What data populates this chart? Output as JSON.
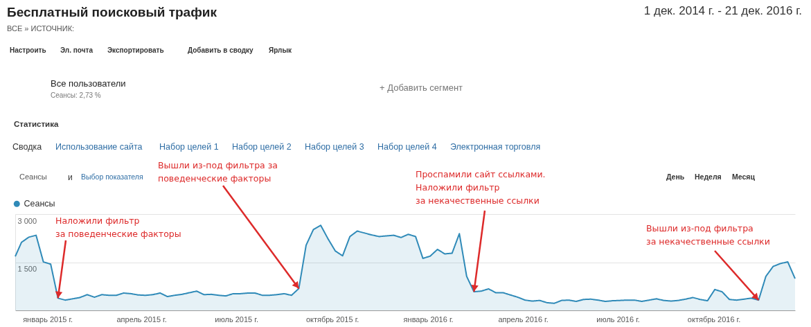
{
  "chart_data": {
    "type": "area",
    "title": "Бесплатный поисковый трафик",
    "subtitle": "1 дек. 2014 г. - 21 дек. 2016 г.",
    "x": [
      "2014-12-01",
      "2014-12-07",
      "2014-12-14",
      "2014-12-21",
      "2014-12-28",
      "2015-01-04",
      "2015-01-11",
      "2015-01-18",
      "2015-01-25",
      "2015-02-01",
      "2015-02-08",
      "2015-02-15",
      "2015-02-22",
      "2015-03-01",
      "2015-03-08",
      "2015-03-15",
      "2015-03-22",
      "2015-03-29",
      "2015-04-05",
      "2015-04-12",
      "2015-04-19",
      "2015-04-26",
      "2015-05-03",
      "2015-05-10",
      "2015-05-17",
      "2015-05-24",
      "2015-05-31",
      "2015-06-07",
      "2015-06-14",
      "2015-06-21",
      "2015-06-28",
      "2015-07-05",
      "2015-07-12",
      "2015-07-19",
      "2015-07-26",
      "2015-08-02",
      "2015-08-09",
      "2015-08-16",
      "2015-08-23",
      "2015-08-30",
      "2015-09-06",
      "2015-09-13",
      "2015-09-20",
      "2015-09-27",
      "2015-10-04",
      "2015-10-11",
      "2015-10-18",
      "2015-10-25",
      "2015-11-01",
      "2015-11-08",
      "2015-11-15",
      "2015-11-22",
      "2015-11-29",
      "2015-12-06",
      "2015-12-13",
      "2015-12-20",
      "2015-12-27",
      "2016-01-03",
      "2016-01-10",
      "2016-01-17",
      "2016-01-24",
      "2016-01-31",
      "2016-02-07",
      "2016-02-14",
      "2016-02-21",
      "2016-02-28",
      "2016-03-06",
      "2016-03-13",
      "2016-03-20",
      "2016-03-27",
      "2016-04-03",
      "2016-04-10",
      "2016-04-17",
      "2016-04-24",
      "2016-05-01",
      "2016-05-08",
      "2016-05-15",
      "2016-05-22",
      "2016-05-29",
      "2016-06-05",
      "2016-06-12",
      "2016-06-19",
      "2016-06-26",
      "2016-07-03",
      "2016-07-10",
      "2016-07-17",
      "2016-07-24",
      "2016-07-31",
      "2016-08-07",
      "2016-08-14",
      "2016-08-21",
      "2016-08-28",
      "2016-09-04",
      "2016-09-11",
      "2016-09-18",
      "2016-09-25",
      "2016-10-02",
      "2016-10-09",
      "2016-10-16",
      "2016-10-23",
      "2016-10-30",
      "2016-11-06",
      "2016-11-13",
      "2016-11-20",
      "2016-11-27",
      "2016-12-04",
      "2016-12-11",
      "2016-12-18"
    ],
    "series": [
      {
        "name": "Сеансы",
        "color": "#2f8ab8",
        "values": [
          1680,
          2120,
          2280,
          2340,
          1510,
          1440,
          380,
          320,
          360,
          400,
          490,
          410,
          490,
          470,
          470,
          540,
          520,
          480,
          470,
          490,
          540,
          430,
          470,
          500,
          550,
          600,
          490,
          500,
          470,
          450,
          520,
          520,
          540,
          540,
          470,
          470,
          490,
          520,
          470,
          680,
          2030,
          2520,
          2650,
          2230,
          1850,
          1700,
          2300,
          2470,
          2410,
          2350,
          2300,
          2320,
          2340,
          2270,
          2370,
          2300,
          1620,
          1690,
          1900,
          1760,
          1780,
          2390,
          1060,
          580,
          600,
          670,
          550,
          550,
          480,
          410,
          320,
          290,
          310,
          240,
          220,
          310,
          320,
          280,
          340,
          350,
          320,
          280,
          300,
          310,
          320,
          320,
          280,
          320,
          360,
          310,
          290,
          310,
          350,
          400,
          340,
          300,
          650,
          580,
          340,
          320,
          350,
          380,
          320,
          1060,
          1370,
          1460,
          1510,
          990
        ]
      }
    ],
    "xlim": [
      "2014-12-01",
      "2016-12-18"
    ],
    "xticks": [
      {
        "value": "2015-01-01",
        "label": "январь 2015 г."
      },
      {
        "value": "2015-04-01",
        "label": "апрель 2015 г."
      },
      {
        "value": "2015-07-01",
        "label": "июль 2015 г."
      },
      {
        "value": "2015-10-01",
        "label": "октябрь 2015 г."
      },
      {
        "value": "2016-01-01",
        "label": "январь 2016 г."
      },
      {
        "value": "2016-04-01",
        "label": "апрель 2016 г."
      },
      {
        "value": "2016-07-01",
        "label": "июль 2016 г."
      },
      {
        "value": "2016-10-01",
        "label": "октябрь 2016 г."
      }
    ],
    "ylim": [
      0,
      3000
    ],
    "yticks": [
      {
        "value": 1500,
        "label": "1 500"
      },
      {
        "value": 3000,
        "label": "3 000"
      }
    ],
    "grid": "y",
    "legend": "top left",
    "annotations": [
      "ВСЕ » ИСТОЧНИК:",
      "Настроить",
      "Эл. почта",
      "Экспортировать",
      "Добавить в сводку",
      "Ярлык",
      "Все пользователи",
      "Сеансы: 2,73 %",
      "+ Добавить сегмент",
      "Статистика",
      "Сводка",
      "Использование сайта",
      "Набор целей 1",
      "Набор целей 2",
      "Набор целей 3",
      "Набор целей 4",
      "Электронная торговля",
      "Сеансы",
      "и",
      "Выбор показателя",
      "День",
      "Неделя",
      "Месяц",
      {
        "text": "Наложили фильтр\nза поведенческие факторы",
        "x": "2015-01-11",
        "y": 380
      },
      {
        "text": "Вышли из-под фильтра за\nповеденческие факторы",
        "x": "2015-08-30",
        "y": 680
      },
      {
        "text": "Проспамили сайт ссылками.\nНаложили фильтр\n за некачественные ссылки",
        "x": "2016-02-14",
        "y": 580
      },
      {
        "text": "Вышли из-под фильтра\nза некачественные ссылки",
        "x": "2016-11-13",
        "y": 320
      }
    ]
  }
}
